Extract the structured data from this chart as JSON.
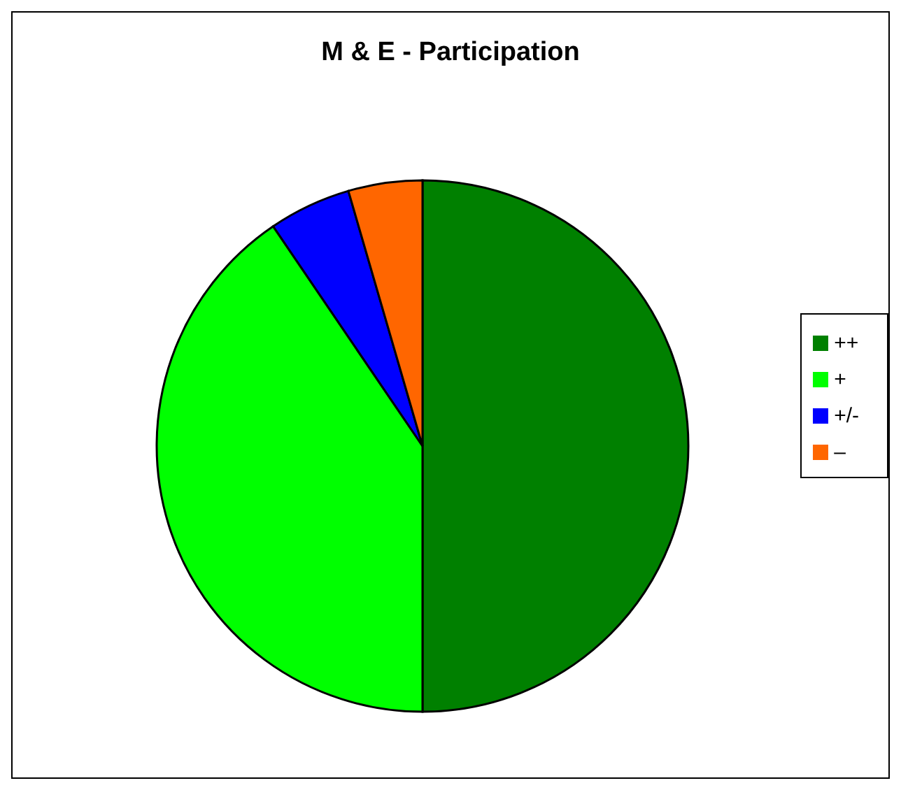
{
  "chart_data": {
    "type": "pie",
    "title": "M & E - Participation",
    "categories": [
      "++",
      "+",
      "+/-",
      "–"
    ],
    "values": [
      50,
      40.5,
      5,
      4.5
    ],
    "colors": [
      "#008000",
      "#00ff00",
      "#0000ff",
      "#ff6600"
    ],
    "legend": "right"
  }
}
